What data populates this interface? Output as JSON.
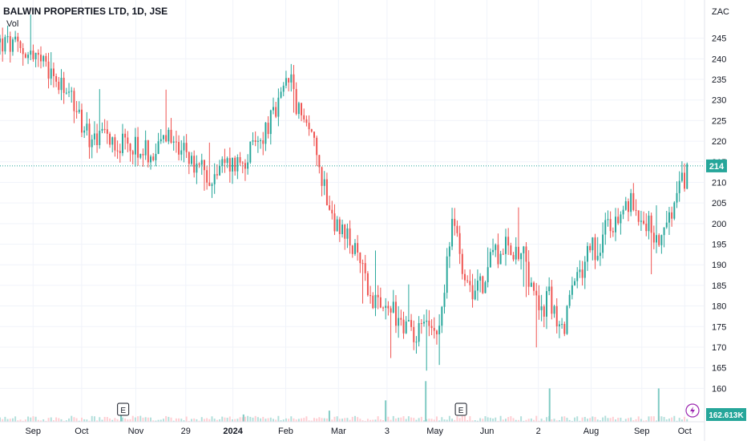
{
  "header": {
    "title": "BALWIN PROPERTIES LTD, 1D, JSE",
    "volume_label": "Vol"
  },
  "currency_label": "ZAC",
  "last_price_label": "214",
  "volume_value_label": "162.613K",
  "earnings_marker": "E",
  "colors": {
    "up": "#26a69a",
    "down": "#ef5350",
    "grid": "#f0f3fa",
    "axis_text": "#131722",
    "last_price_line": "#26a69a",
    "lightning": "#9c27b0"
  },
  "chart_data": {
    "type": "candlestick",
    "title": "BALWIN PROPERTIES LTD, 1D, JSE",
    "ylabel": "ZAC",
    "ylim": [
      155,
      250
    ],
    "yticks": [
      160,
      165,
      170,
      175,
      180,
      185,
      190,
      195,
      200,
      205,
      210,
      215,
      220,
      225,
      230,
      235,
      240,
      245
    ],
    "xlim": [
      0,
      100
    ],
    "xticks": [
      {
        "label": "Sep",
        "x": 4.7
      },
      {
        "label": "Oct",
        "x": 11.6
      },
      {
        "label": "Nov",
        "x": 19.3
      },
      {
        "label": "29",
        "x": 26.4
      },
      {
        "label": "2024",
        "x": 33.1
      },
      {
        "label": "Feb",
        "x": 40.6
      },
      {
        "label": "Mar",
        "x": 48.1
      },
      {
        "label": "3",
        "x": 55.0
      },
      {
        "label": "May",
        "x": 61.8
      },
      {
        "label": "Jun",
        "x": 69.2
      },
      {
        "label": "2",
        "x": 76.5
      },
      {
        "label": "Aug",
        "x": 84.0
      },
      {
        "label": "Sep",
        "x": 91.2
      },
      {
        "label": "Oct",
        "x": 97.3
      }
    ],
    "last_price": 214,
    "price_anchors": [
      [
        0,
        244
      ],
      [
        3,
        242
      ],
      [
        5,
        241
      ],
      [
        7,
        236
      ],
      [
        9,
        232
      ],
      [
        11,
        228
      ],
      [
        12,
        222
      ],
      [
        14,
        220
      ],
      [
        16,
        221
      ],
      [
        18,
        218
      ],
      [
        19,
        220
      ],
      [
        20,
        217
      ],
      [
        22,
        218
      ],
      [
        24,
        221
      ],
      [
        26,
        218
      ],
      [
        28,
        213
      ],
      [
        30,
        212
      ],
      [
        32,
        214
      ],
      [
        34,
        215
      ],
      [
        36,
        218
      ],
      [
        37,
        220
      ],
      [
        38,
        224
      ],
      [
        39,
        226
      ],
      [
        40,
        230
      ],
      [
        41,
        236
      ],
      [
        42,
        230
      ],
      [
        43,
        224
      ],
      [
        44,
        225
      ],
      [
        45,
        215
      ],
      [
        46,
        210
      ],
      [
        47,
        204
      ],
      [
        48,
        198
      ],
      [
        50,
        195
      ],
      [
        51,
        190
      ],
      [
        52,
        186
      ],
      [
        53,
        182
      ],
      [
        54,
        178
      ],
      [
        55,
        180
      ],
      [
        56,
        178
      ],
      [
        58,
        175
      ],
      [
        59,
        170
      ],
      [
        60,
        176
      ],
      [
        61,
        178
      ],
      [
        62,
        175
      ],
      [
        63,
        182
      ],
      [
        64,
        198
      ],
      [
        65,
        200
      ],
      [
        66,
        186
      ],
      [
        67,
        182
      ],
      [
        68,
        188
      ],
      [
        69,
        184
      ],
      [
        70,
        195
      ],
      [
        71,
        192
      ],
      [
        72,
        196
      ],
      [
        73,
        190
      ],
      [
        74,
        196
      ],
      [
        75,
        188
      ],
      [
        76,
        184
      ],
      [
        77,
        178
      ],
      [
        78,
        182
      ],
      [
        79,
        178
      ],
      [
        80,
        174
      ],
      [
        81,
        182
      ],
      [
        82,
        186
      ],
      [
        83,
        190
      ],
      [
        84,
        196
      ],
      [
        85,
        192
      ],
      [
        86,
        200
      ],
      [
        87,
        198
      ],
      [
        88,
        202
      ],
      [
        89,
        204
      ],
      [
        90,
        205
      ],
      [
        91,
        202
      ],
      [
        92,
        200
      ],
      [
        93,
        198
      ],
      [
        94,
        196
      ],
      [
        95,
        200
      ],
      [
        96,
        205
      ],
      [
        97,
        210
      ],
      [
        98,
        214
      ]
    ],
    "volume_ylim": [
      0,
      1200000
    ],
    "volume_spikes": [
      [
        17.2,
        420000
      ],
      [
        34.6,
        170000
      ],
      [
        46.8,
        260000
      ],
      [
        54.8,
        500000
      ],
      [
        60.5,
        950000
      ],
      [
        78.1,
        780000
      ],
      [
        93.6,
        780000
      ]
    ],
    "earnings_events_x": [
      17.5,
      65.5
    ]
  }
}
